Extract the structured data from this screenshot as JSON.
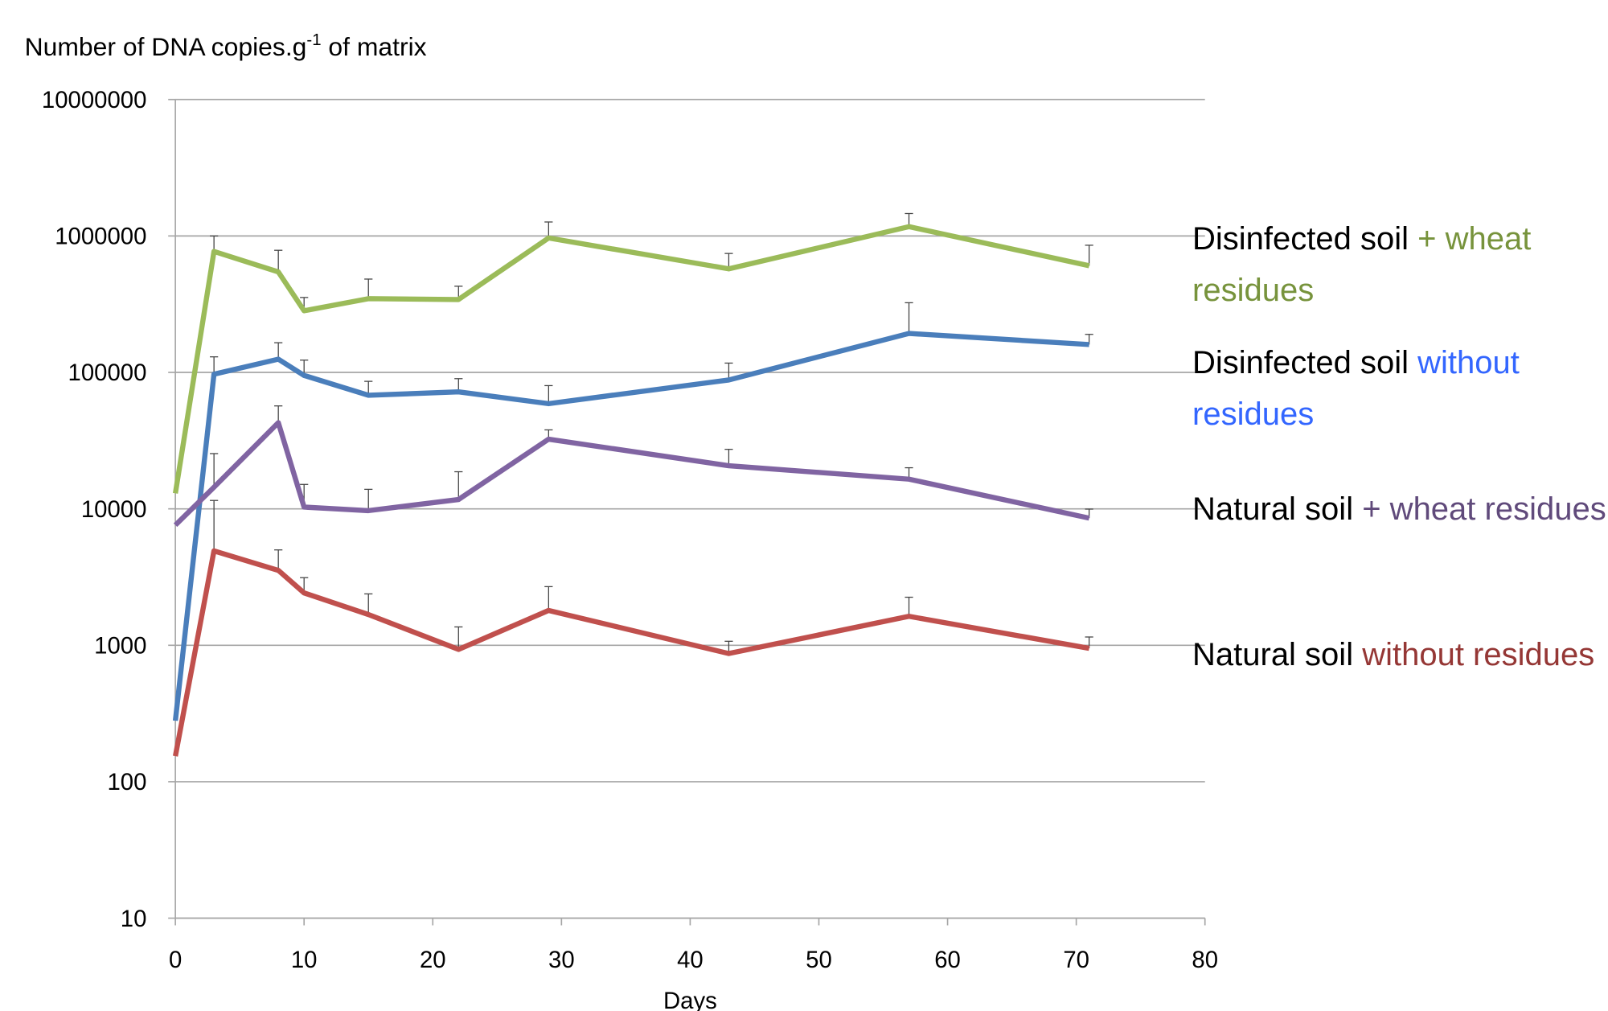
{
  "chart_data": {
    "type": "line",
    "y_label": {
      "before": "Number of DNA copies.g",
      "sup": "-1",
      "after": " of matrix"
    },
    "x_label": "Days",
    "x": [
      0,
      3,
      8,
      10,
      15,
      22,
      29,
      43,
      57,
      71
    ],
    "xlim": [
      0,
      80
    ],
    "xticks": [
      0,
      10,
      20,
      30,
      40,
      50,
      60,
      70,
      80
    ],
    "ylim": [
      10,
      10000000
    ],
    "yticks": [
      10,
      100,
      1000,
      10000,
      100000,
      1000000,
      10000000
    ],
    "log_y": true,
    "grid": true,
    "series": [
      {
        "label": {
          "base": "Disinfected soil",
          "qualifier": "+ wheat residues"
        },
        "color": "#9bbb59",
        "label_color": "#77933c",
        "values": [
          13000,
          770000,
          545000,
          283000,
          347000,
          342000,
          966000,
          574000,
          1170000,
          605000
        ],
        "errors": [
          null,
          230000,
          240000,
          71000,
          136000,
          86000,
          300000,
          170000,
          290000,
          250000
        ]
      },
      {
        "label": {
          "base": "Disinfected soil",
          "qualifier": "without residues"
        },
        "color": "#4a7ebb",
        "label_color": "#3366ff",
        "values": [
          280,
          97000,
          125000,
          95000,
          68000,
          72000,
          59000,
          88000,
          193000,
          160000
        ],
        "errors": [
          null,
          33000,
          40000,
          28000,
          18000,
          18000,
          21000,
          29000,
          131000,
          30000
        ]
      },
      {
        "label": {
          "base": "Natural soil",
          "qualifier": "+ wheat residues"
        },
        "color": "#8064a2",
        "label_color": "#604a7b",
        "values": [
          7600,
          14400,
          42800,
          10300,
          9700,
          11700,
          32400,
          20700,
          16500,
          8550
        ],
        "errors": [
          null,
          11000,
          14000,
          4800,
          4200,
          7000,
          5500,
          6600,
          3500,
          1400
        ]
      },
      {
        "label": {
          "base": "Natural soil",
          "qualifier": "without residues"
        },
        "color": "#c0504d",
        "label_color": "#953735",
        "values": [
          154,
          4920,
          3540,
          2420,
          1680,
          933,
          1800,
          870,
          1630,
          950
        ],
        "errors": [
          null,
          6600,
          1460,
          710,
          700,
          430,
          890,
          200,
          620,
          200
        ]
      }
    ]
  }
}
